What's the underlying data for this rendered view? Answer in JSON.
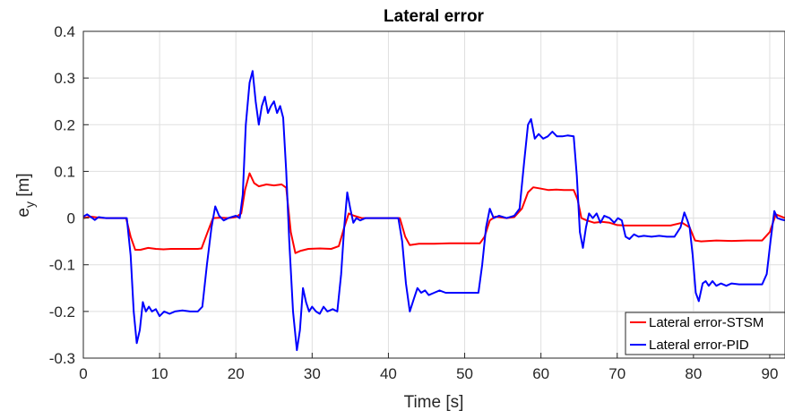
{
  "chart_data": {
    "type": "line",
    "title": "Lateral error",
    "xlabel": "Time [s]",
    "ylabel_main": "e",
    "ylabel_sub": "y",
    "ylabel_unit": " [m]",
    "xlim": [
      0,
      92
    ],
    "ylim": [
      -0.3,
      0.4
    ],
    "xticks": [
      0,
      10,
      20,
      30,
      40,
      50,
      60,
      70,
      80,
      90
    ],
    "xtick_labels": [
      "0",
      "10",
      "20",
      "30",
      "40",
      "50",
      "60",
      "70",
      "80",
      "90"
    ],
    "yticks": [
      -0.3,
      -0.2,
      -0.1,
      0,
      0.1,
      0.2,
      0.3,
      0.4
    ],
    "ytick_labels": [
      "-0.3",
      "-0.2",
      "-0.1",
      "0",
      "0.1",
      "0.2",
      "0.3",
      "0.4"
    ],
    "grid": true,
    "legend_position": "bottom-right",
    "series": [
      {
        "name": "Lateral error-STSM",
        "color": "#ff0000",
        "points": [
          [
            0,
            0.0
          ],
          [
            1,
            0.003
          ],
          [
            2,
            0.001
          ],
          [
            3,
            0.0
          ],
          [
            4,
            0.0
          ],
          [
            5,
            0.0
          ],
          [
            5.6,
            0.0
          ],
          [
            6.2,
            -0.04
          ],
          [
            6.8,
            -0.068
          ],
          [
            7.5,
            -0.068
          ],
          [
            8.5,
            -0.064
          ],
          [
            9.5,
            -0.066
          ],
          [
            10.5,
            -0.067
          ],
          [
            11.5,
            -0.066
          ],
          [
            13,
            -0.066
          ],
          [
            15,
            -0.066
          ],
          [
            15.5,
            -0.065
          ],
          [
            16.3,
            -0.03
          ],
          [
            17,
            0.0
          ],
          [
            18,
            0.001
          ],
          [
            19,
            0.0
          ],
          [
            20,
            0.002
          ],
          [
            20.7,
            0.01
          ],
          [
            21.2,
            0.06
          ],
          [
            21.8,
            0.096
          ],
          [
            22.4,
            0.075
          ],
          [
            23,
            0.068
          ],
          [
            24,
            0.072
          ],
          [
            25,
            0.07
          ],
          [
            26,
            0.072
          ],
          [
            26.6,
            0.065
          ],
          [
            27.2,
            -0.03
          ],
          [
            27.8,
            -0.075
          ],
          [
            28.5,
            -0.07
          ],
          [
            29.5,
            -0.066
          ],
          [
            31,
            -0.065
          ],
          [
            32.5,
            -0.066
          ],
          [
            33.5,
            -0.06
          ],
          [
            34.2,
            -0.02
          ],
          [
            34.8,
            0.01
          ],
          [
            35.5,
            0.005
          ],
          [
            36.5,
            0.0
          ],
          [
            38,
            0.0
          ],
          [
            40,
            0.0
          ],
          [
            41.5,
            0.0
          ],
          [
            42.2,
            -0.04
          ],
          [
            42.8,
            -0.058
          ],
          [
            44,
            -0.055
          ],
          [
            46,
            -0.055
          ],
          [
            48,
            -0.054
          ],
          [
            50,
            -0.054
          ],
          [
            52,
            -0.054
          ],
          [
            52.6,
            -0.04
          ],
          [
            53.3,
            -0.005
          ],
          [
            54,
            0.003
          ],
          [
            55.5,
            0.0
          ],
          [
            56.5,
            0.002
          ],
          [
            57.5,
            0.02
          ],
          [
            58.3,
            0.055
          ],
          [
            59,
            0.066
          ],
          [
            60,
            0.063
          ],
          [
            61,
            0.06
          ],
          [
            62,
            0.061
          ],
          [
            63,
            0.06
          ],
          [
            64.3,
            0.06
          ],
          [
            64.8,
            0.04
          ],
          [
            65.3,
            0.0
          ],
          [
            66,
            -0.005
          ],
          [
            67,
            -0.01
          ],
          [
            68,
            -0.008
          ],
          [
            69,
            -0.01
          ],
          [
            70,
            -0.015
          ],
          [
            71,
            -0.016
          ],
          [
            73,
            -0.016
          ],
          [
            75,
            -0.016
          ],
          [
            77,
            -0.016
          ],
          [
            78.5,
            -0.01
          ],
          [
            79.5,
            -0.02
          ],
          [
            80.2,
            -0.048
          ],
          [
            81,
            -0.05
          ],
          [
            83,
            -0.048
          ],
          [
            85,
            -0.049
          ],
          [
            87,
            -0.048
          ],
          [
            89,
            -0.048
          ],
          [
            90,
            -0.03
          ],
          [
            90.8,
            0.008
          ],
          [
            92,
            0.0
          ]
        ]
      },
      {
        "name": "Lateral error-PID",
        "color": "#0000ff",
        "points": [
          [
            0,
            0.003
          ],
          [
            0.5,
            0.008
          ],
          [
            1,
            0.002
          ],
          [
            1.5,
            -0.004
          ],
          [
            2,
            0.002
          ],
          [
            2.5,
            0.001
          ],
          [
            3,
            0.0
          ],
          [
            4,
            0.0
          ],
          [
            5,
            0.0
          ],
          [
            5.7,
            0.0
          ],
          [
            6.2,
            -0.08
          ],
          [
            6.6,
            -0.2
          ],
          [
            7.0,
            -0.268
          ],
          [
            7.4,
            -0.24
          ],
          [
            7.8,
            -0.18
          ],
          [
            8.2,
            -0.2
          ],
          [
            8.6,
            -0.19
          ],
          [
            9.0,
            -0.2
          ],
          [
            9.5,
            -0.195
          ],
          [
            10.0,
            -0.21
          ],
          [
            10.6,
            -0.2
          ],
          [
            11.3,
            -0.205
          ],
          [
            12,
            -0.2
          ],
          [
            13,
            -0.198
          ],
          [
            14,
            -0.2
          ],
          [
            15,
            -0.2
          ],
          [
            15.6,
            -0.19
          ],
          [
            16.2,
            -0.1
          ],
          [
            16.8,
            -0.02
          ],
          [
            17.3,
            0.025
          ],
          [
            17.8,
            0.005
          ],
          [
            18.4,
            -0.005
          ],
          [
            19,
            0.0
          ],
          [
            20,
            0.005
          ],
          [
            20.5,
            0.0
          ],
          [
            20.9,
            0.05
          ],
          [
            21.3,
            0.2
          ],
          [
            21.8,
            0.29
          ],
          [
            22.2,
            0.315
          ],
          [
            22.6,
            0.25
          ],
          [
            23.0,
            0.2
          ],
          [
            23.4,
            0.24
          ],
          [
            23.8,
            0.26
          ],
          [
            24.2,
            0.225
          ],
          [
            24.6,
            0.24
          ],
          [
            25.0,
            0.25
          ],
          [
            25.4,
            0.225
          ],
          [
            25.8,
            0.24
          ],
          [
            26.2,
            0.215
          ],
          [
            26.6,
            0.1
          ],
          [
            27.0,
            -0.05
          ],
          [
            27.5,
            -0.2
          ],
          [
            28.0,
            -0.283
          ],
          [
            28.4,
            -0.24
          ],
          [
            28.8,
            -0.15
          ],
          [
            29.2,
            -0.18
          ],
          [
            29.6,
            -0.2
          ],
          [
            30.0,
            -0.19
          ],
          [
            30.5,
            -0.2
          ],
          [
            31,
            -0.205
          ],
          [
            31.5,
            -0.19
          ],
          [
            32,
            -0.2
          ],
          [
            32.7,
            -0.195
          ],
          [
            33.3,
            -0.2
          ],
          [
            33.8,
            -0.12
          ],
          [
            34.2,
            -0.02
          ],
          [
            34.6,
            0.055
          ],
          [
            35.0,
            0.02
          ],
          [
            35.4,
            -0.01
          ],
          [
            35.8,
            0.0
          ],
          [
            36.3,
            -0.005
          ],
          [
            37,
            0.0
          ],
          [
            38,
            0.0
          ],
          [
            39,
            0.0
          ],
          [
            40,
            0.0
          ],
          [
            41.3,
            0.0
          ],
          [
            41.8,
            -0.05
          ],
          [
            42.3,
            -0.14
          ],
          [
            42.8,
            -0.2
          ],
          [
            43.3,
            -0.175
          ],
          [
            43.8,
            -0.15
          ],
          [
            44.3,
            -0.16
          ],
          [
            44.8,
            -0.155
          ],
          [
            45.3,
            -0.165
          ],
          [
            46,
            -0.16
          ],
          [
            46.7,
            -0.155
          ],
          [
            47.5,
            -0.16
          ],
          [
            48.5,
            -0.16
          ],
          [
            49.5,
            -0.16
          ],
          [
            50.5,
            -0.16
          ],
          [
            51.8,
            -0.16
          ],
          [
            52.3,
            -0.1
          ],
          [
            52.8,
            -0.02
          ],
          [
            53.3,
            0.02
          ],
          [
            53.8,
            0.0
          ],
          [
            54.5,
            0.005
          ],
          [
            55.5,
            0.0
          ],
          [
            56.5,
            0.005
          ],
          [
            57.2,
            0.02
          ],
          [
            57.8,
            0.12
          ],
          [
            58.3,
            0.2
          ],
          [
            58.7,
            0.212
          ],
          [
            59.2,
            0.17
          ],
          [
            59.7,
            0.18
          ],
          [
            60.3,
            0.17
          ],
          [
            60.9,
            0.175
          ],
          [
            61.5,
            0.185
          ],
          [
            62.1,
            0.175
          ],
          [
            62.8,
            0.175
          ],
          [
            63.5,
            0.177
          ],
          [
            64.3,
            0.175
          ],
          [
            64.7,
            0.09
          ],
          [
            65.1,
            -0.03
          ],
          [
            65.5,
            -0.064
          ],
          [
            65.9,
            -0.02
          ],
          [
            66.3,
            0.01
          ],
          [
            66.8,
            0.0
          ],
          [
            67.3,
            0.01
          ],
          [
            67.8,
            -0.01
          ],
          [
            68.3,
            0.005
          ],
          [
            69,
            0.0
          ],
          [
            69.6,
            -0.01
          ],
          [
            70.1,
            0.0
          ],
          [
            70.6,
            -0.005
          ],
          [
            71.1,
            -0.04
          ],
          [
            71.6,
            -0.045
          ],
          [
            72.2,
            -0.035
          ],
          [
            72.8,
            -0.04
          ],
          [
            73.5,
            -0.038
          ],
          [
            74.5,
            -0.04
          ],
          [
            75.5,
            -0.038
          ],
          [
            76.5,
            -0.04
          ],
          [
            77.5,
            -0.04
          ],
          [
            78.3,
            -0.02
          ],
          [
            78.8,
            0.012
          ],
          [
            79.2,
            -0.005
          ],
          [
            79.5,
            -0.02
          ],
          [
            79.9,
            -0.08
          ],
          [
            80.3,
            -0.16
          ],
          [
            80.7,
            -0.178
          ],
          [
            81.2,
            -0.14
          ],
          [
            81.6,
            -0.135
          ],
          [
            82,
            -0.145
          ],
          [
            82.5,
            -0.135
          ],
          [
            83,
            -0.145
          ],
          [
            83.6,
            -0.14
          ],
          [
            84.3,
            -0.145
          ],
          [
            85,
            -0.14
          ],
          [
            86,
            -0.142
          ],
          [
            87,
            -0.142
          ],
          [
            88,
            -0.142
          ],
          [
            89,
            -0.142
          ],
          [
            89.6,
            -0.12
          ],
          [
            90.1,
            -0.05
          ],
          [
            90.6,
            0.015
          ],
          [
            91.0,
            0.0
          ],
          [
            91.5,
            -0.003
          ],
          [
            92,
            -0.005
          ]
        ]
      }
    ]
  }
}
